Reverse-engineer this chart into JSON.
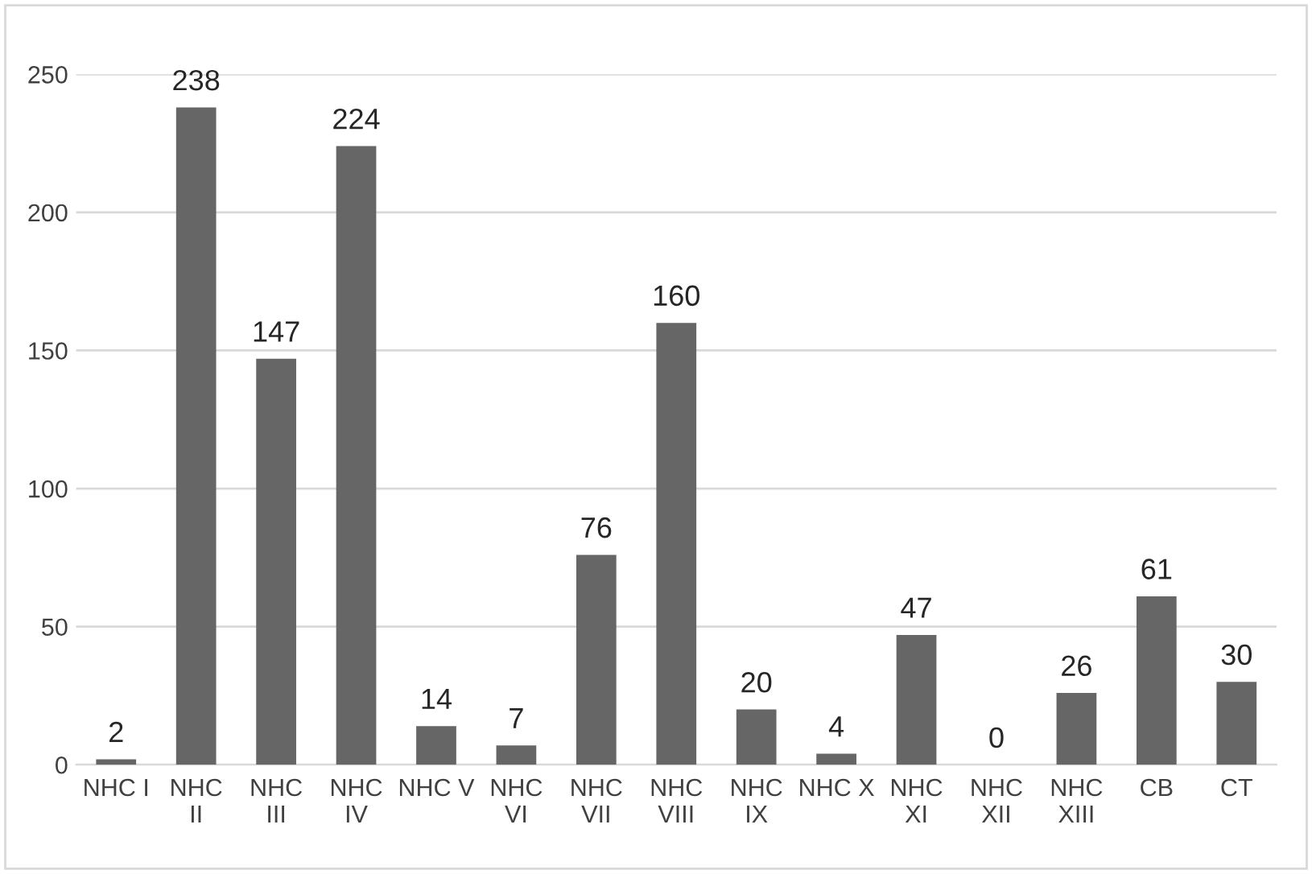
{
  "chart_data": {
    "type": "bar",
    "categories": [
      "NHC I",
      "NHC II",
      "NHC III",
      "NHC IV",
      "NHC V",
      "NHC VI",
      "NHC VII",
      "NHC VIII",
      "NHC IX",
      "NHC X",
      "NHC XI",
      "NHC XII",
      "NHC XIII",
      "CB",
      "CT"
    ],
    "values": [
      2,
      238,
      147,
      224,
      14,
      7,
      76,
      160,
      20,
      4,
      47,
      0,
      26,
      61,
      30
    ],
    "color": "#666666",
    "ylim": [
      0,
      250
    ],
    "yticks": [
      0,
      50,
      100,
      150,
      200,
      250
    ],
    "grid": "y",
    "data_labels": true
  }
}
